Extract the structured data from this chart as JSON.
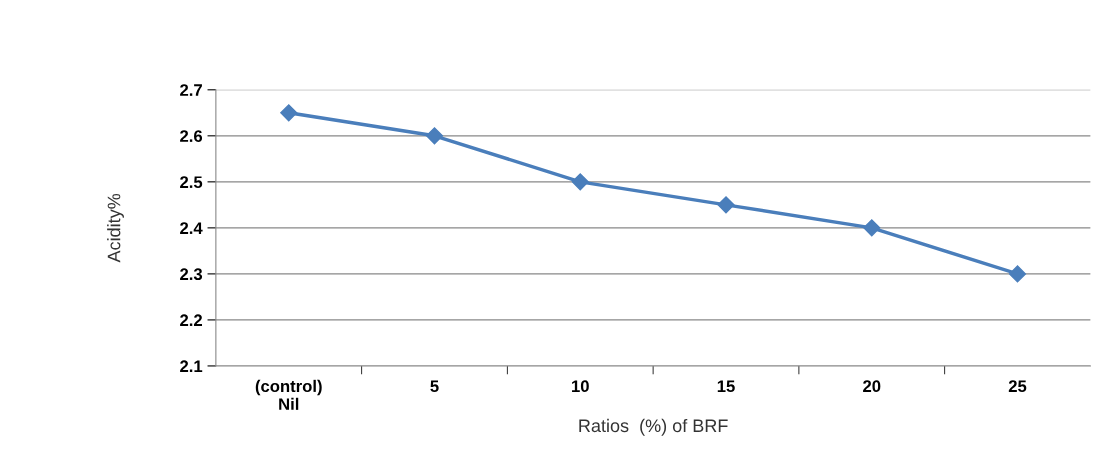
{
  "chart_data": {
    "type": "line",
    "xlabel": "Ratios  (%) of BRF",
    "ylabel": "Acidity%",
    "categories": [
      "(control)\nNil",
      "5",
      "10",
      "15",
      "20",
      "25"
    ],
    "series": [
      {
        "color": "#4a7ebb",
        "values": [
          2.65,
          2.6,
          2.5,
          2.45,
          2.4,
          2.3
        ]
      }
    ],
    "ylim": [
      2.1,
      2.7
    ],
    "yticks": [
      2.1,
      2.2,
      2.3,
      2.4,
      2.5,
      2.6,
      2.7
    ],
    "grid": "y",
    "marker": "diamond",
    "line_style": "solid",
    "legend": false
  }
}
